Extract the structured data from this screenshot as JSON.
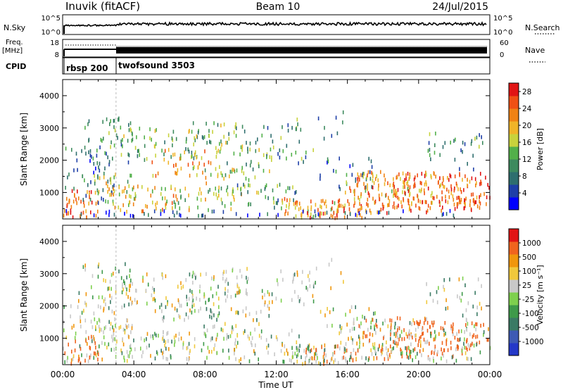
{
  "header": {
    "station": "Inuvik (fitACF)",
    "beam": "Beam 10",
    "date": "24/Jul/2015"
  },
  "strips": {
    "nsky_label": "N.Sky",
    "nsky_ticks": [
      "10^5",
      "10^0"
    ],
    "nsearch_label": "N.Search",
    "nsearch_ticks": [
      "10^5",
      "10^0"
    ],
    "freq_label_1": "Freq.",
    "freq_label_2": "[MHz]",
    "freq_ticks": [
      "18",
      "8"
    ],
    "nave_label": "Nave",
    "nave_ticks": [
      "60",
      "0"
    ],
    "cpid_label": "CPID",
    "cpid_modes": [
      {
        "label": "rbsp 200",
        "start_hour": 0
      },
      {
        "label": "twofsound 3503",
        "start_hour": 3.0
      }
    ]
  },
  "colors": {
    "power_scale": [
      "#0000ff",
      "#1e3fa8",
      "#2e6e6e",
      "#3d8a5e",
      "#52b04a",
      "#c8d23c",
      "#f0b428",
      "#f08214",
      "#f05014",
      "#e11414"
    ],
    "velocity_scale": [
      "#2438c8",
      "#3e5ab4",
      "#3a7a64",
      "#3e9a4a",
      "#7ed04e",
      "#c8c8c8",
      "#f0c83c",
      "#f0960c",
      "#f0641e",
      "#e11414"
    ]
  },
  "chart_data": [
    {
      "type": "heatmap",
      "title": "Power",
      "xlabel": "Time UT",
      "ylabel": "Slant Range [km]",
      "x_ticks": [
        "00:00",
        "04:00",
        "08:00",
        "12:00",
        "16:00",
        "20:00",
        "00:00"
      ],
      "y_ticks": [
        "1000",
        "2000",
        "3000",
        "4000"
      ],
      "xlim_hours": [
        0,
        24
      ],
      "ylim_km": [
        180,
        4500
      ],
      "colorbar_label": "Power [dB]",
      "colorbar_ticks": [
        "4",
        "8",
        "12",
        "16",
        "20",
        "24",
        "28"
      ],
      "colorbar_range": [
        0,
        30
      ]
    },
    {
      "type": "heatmap",
      "title": "Velocity",
      "xlabel": "Time UT",
      "ylabel": "Slant Range [km]",
      "x_ticks": [
        "00:00",
        "04:00",
        "08:00",
        "12:00",
        "16:00",
        "20:00",
        "00:00"
      ],
      "y_ticks": [
        "1000",
        "2000",
        "3000",
        "4000"
      ],
      "xlim_hours": [
        0,
        24
      ],
      "ylim_km": [
        180,
        4500
      ],
      "colorbar_label": "Velocity [m s⁻¹]",
      "colorbar_ticks": [
        "1000",
        "500",
        "100",
        "25",
        "-25",
        "-100",
        "-500",
        "-1000"
      ]
    }
  ]
}
